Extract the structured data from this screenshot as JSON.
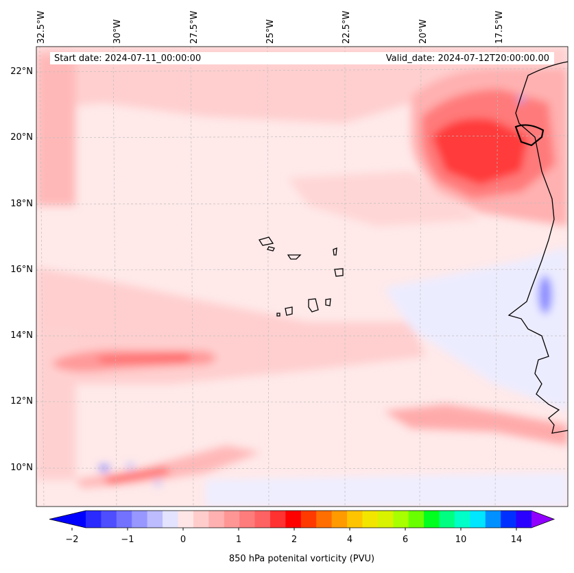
{
  "map": {
    "start_date": "Start date: 2024-07-11_00:00:00",
    "valid_date": "Valid_date: 2024-07-12T20:00:00.00",
    "lon_labels": [
      "32.5°W",
      "30°W",
      "27.5°W",
      "25°W",
      "22.5°W",
      "20°W",
      "17.5°W"
    ],
    "lat_labels": [
      "22°N",
      "20°N",
      "18°N",
      "16°N",
      "14°N",
      "12°N",
      "10°N"
    ],
    "colorbar": {
      "title": "850 hPa potenital vorticity (PVU)",
      "tick_labels": [
        "−2",
        "−1",
        "0",
        "1",
        "2",
        "4",
        "6",
        "10",
        "14"
      ],
      "colors": [
        "#0000ff",
        "#2a2aff",
        "#4e4eff",
        "#7272ff",
        "#9797ff",
        "#bcbcff",
        "#e3e3ff",
        "#ffe6e6",
        "#ffcccc",
        "#ffb1b1",
        "#ff9696",
        "#ff7c7c",
        "#ff6262",
        "#ff3131",
        "#ff0000",
        "#ff3a00",
        "#ff6e00",
        "#ff9a00",
        "#ffc400",
        "#f2e600",
        "#d9f200",
        "#a8ff00",
        "#6aff00",
        "#00ff1e",
        "#00ff80",
        "#00ffc8",
        "#00e6ff",
        "#0090ff",
        "#0030ff",
        "#2a00ff",
        "#9000ff"
      ]
    }
  }
}
